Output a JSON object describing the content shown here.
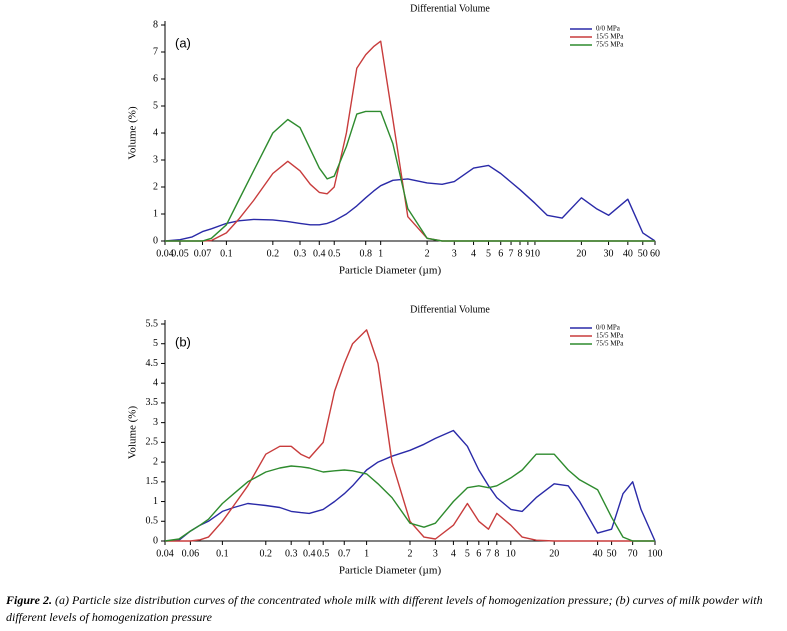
{
  "chart_data": [
    {
      "type": "line",
      "title": "Differential Volume",
      "annotation": "(a)",
      "x_label": "Particle Diameter (µm)",
      "y_label": "Volume (%)",
      "xscale": "log",
      "xlim": [
        0.04,
        60
      ],
      "ylim": [
        0,
        8
      ],
      "xticks": [
        0.04,
        0.05,
        0.07,
        0.1,
        0.2,
        0.3,
        0.4,
        0.5,
        0.8,
        1,
        2,
        3,
        4,
        5,
        6,
        7,
        8,
        9,
        10,
        20,
        30,
        40,
        50,
        60
      ],
      "yticks": [
        0,
        1,
        2,
        3,
        4,
        5,
        6,
        7,
        8
      ],
      "grid": false,
      "legend": "upper right",
      "x": [
        0.04,
        0.05,
        0.06,
        0.07,
        0.08,
        0.1,
        0.12,
        0.15,
        0.2,
        0.25,
        0.3,
        0.35,
        0.4,
        0.45,
        0.5,
        0.6,
        0.7,
        0.8,
        0.9,
        1,
        1.2,
        1.5,
        2,
        2.5,
        3,
        4,
        5,
        6,
        8,
        10,
        12,
        15,
        20,
        25,
        30,
        40,
        50,
        60
      ],
      "series": [
        {
          "name": "0/0 MPa",
          "color": "#2a2aa8",
          "values": [
            0,
            0.05,
            0.15,
            0.35,
            0.45,
            0.65,
            0.75,
            0.8,
            0.78,
            0.72,
            0.65,
            0.6,
            0.6,
            0.65,
            0.75,
            1.0,
            1.3,
            1.6,
            1.85,
            2.05,
            2.25,
            2.3,
            2.15,
            2.1,
            2.2,
            2.7,
            2.8,
            2.5,
            1.9,
            1.4,
            0.95,
            0.85,
            1.6,
            1.2,
            0.95,
            1.55,
            0.3,
            0
          ]
        },
        {
          "name": "15/5 MPa",
          "color": "#c83c3c",
          "values": [
            0,
            0,
            0,
            0,
            0.02,
            0.3,
            0.8,
            1.5,
            2.5,
            2.95,
            2.6,
            2.1,
            1.8,
            1.75,
            2.0,
            4.0,
            6.4,
            6.9,
            7.2,
            7.4,
            4.5,
            0.9,
            0.1,
            0,
            0,
            0,
            0,
            0,
            0,
            0,
            0,
            0,
            0,
            0,
            0,
            0,
            0,
            0
          ]
        },
        {
          "name": "75/5 MPa",
          "color": "#2e8b2e",
          "values": [
            0,
            0,
            0,
            0,
            0.1,
            0.6,
            1.5,
            2.6,
            4.0,
            4.5,
            4.2,
            3.4,
            2.7,
            2.3,
            2.4,
            3.5,
            4.7,
            4.8,
            4.8,
            4.8,
            3.6,
            1.2,
            0.1,
            0,
            0,
            0,
            0,
            0,
            0,
            0,
            0,
            0,
            0,
            0,
            0,
            0,
            0,
            0
          ]
        }
      ]
    },
    {
      "type": "line",
      "title": "Differential Volume",
      "annotation": "(b)",
      "x_label": "Particle Diameter (µm)",
      "y_label": "Volume (%)",
      "xscale": "log",
      "xlim": [
        0.04,
        100
      ],
      "ylim": [
        0,
        5.5
      ],
      "xticks": [
        0.04,
        0.06,
        0.1,
        0.2,
        0.3,
        0.4,
        0.5,
        0.7,
        1,
        2,
        3,
        4,
        5,
        6,
        7,
        8,
        10,
        20,
        40,
        50,
        70,
        100
      ],
      "yticks": [
        0,
        0.5,
        1,
        1.5,
        2,
        2.5,
        3,
        3.5,
        4,
        4.5,
        5,
        5.5
      ],
      "grid": false,
      "legend": "upper right",
      "x": [
        0.04,
        0.05,
        0.06,
        0.07,
        0.08,
        0.1,
        0.12,
        0.15,
        0.2,
        0.25,
        0.3,
        0.35,
        0.4,
        0.5,
        0.6,
        0.7,
        0.8,
        1,
        1.2,
        1.5,
        2,
        2.5,
        3,
        4,
        5,
        6,
        7,
        8,
        10,
        12,
        15,
        20,
        25,
        30,
        40,
        50,
        60,
        70,
        80,
        100
      ],
      "series": [
        {
          "name": "0/0 MPa",
          "color": "#2a2aa8",
          "values": [
            0,
            0.02,
            0.25,
            0.4,
            0.5,
            0.75,
            0.85,
            0.95,
            0.9,
            0.85,
            0.75,
            0.72,
            0.7,
            0.8,
            1.0,
            1.2,
            1.4,
            1.8,
            2.0,
            2.15,
            2.3,
            2.45,
            2.6,
            2.8,
            2.4,
            1.8,
            1.4,
            1.1,
            0.8,
            0.75,
            1.1,
            1.45,
            1.4,
            1.0,
            0.2,
            0.3,
            1.2,
            1.5,
            0.8,
            0
          ]
        },
        {
          "name": "15/5 MPa",
          "color": "#c83c3c",
          "values": [
            0,
            0,
            0,
            0.03,
            0.1,
            0.5,
            0.9,
            1.4,
            2.2,
            2.4,
            2.4,
            2.2,
            2.1,
            2.5,
            3.8,
            4.5,
            5.0,
            5.35,
            4.5,
            2.0,
            0.5,
            0.1,
            0.05,
            0.4,
            0.95,
            0.5,
            0.3,
            0.7,
            0.4,
            0.1,
            0.02,
            0,
            0,
            0,
            0,
            0,
            0,
            0,
            0,
            0
          ]
        },
        {
          "name": "75/5 MPa",
          "color": "#2e8b2e",
          "values": [
            0,
            0.05,
            0.25,
            0.4,
            0.55,
            0.95,
            1.2,
            1.5,
            1.75,
            1.85,
            1.9,
            1.88,
            1.85,
            1.75,
            1.78,
            1.8,
            1.78,
            1.7,
            1.45,
            1.1,
            0.45,
            0.35,
            0.45,
            1.0,
            1.35,
            1.4,
            1.35,
            1.4,
            1.6,
            1.8,
            2.2,
            2.2,
            1.8,
            1.55,
            1.3,
            0.6,
            0.1,
            0,
            0,
            0
          ]
        }
      ]
    }
  ],
  "caption": {
    "label": "Figure 2.",
    "text": "(a) Particle size distribution curves of the concentrated whole milk with different levels of homogenization pressure; (b) curves of milk powder with different levels of homogenization pressure"
  }
}
